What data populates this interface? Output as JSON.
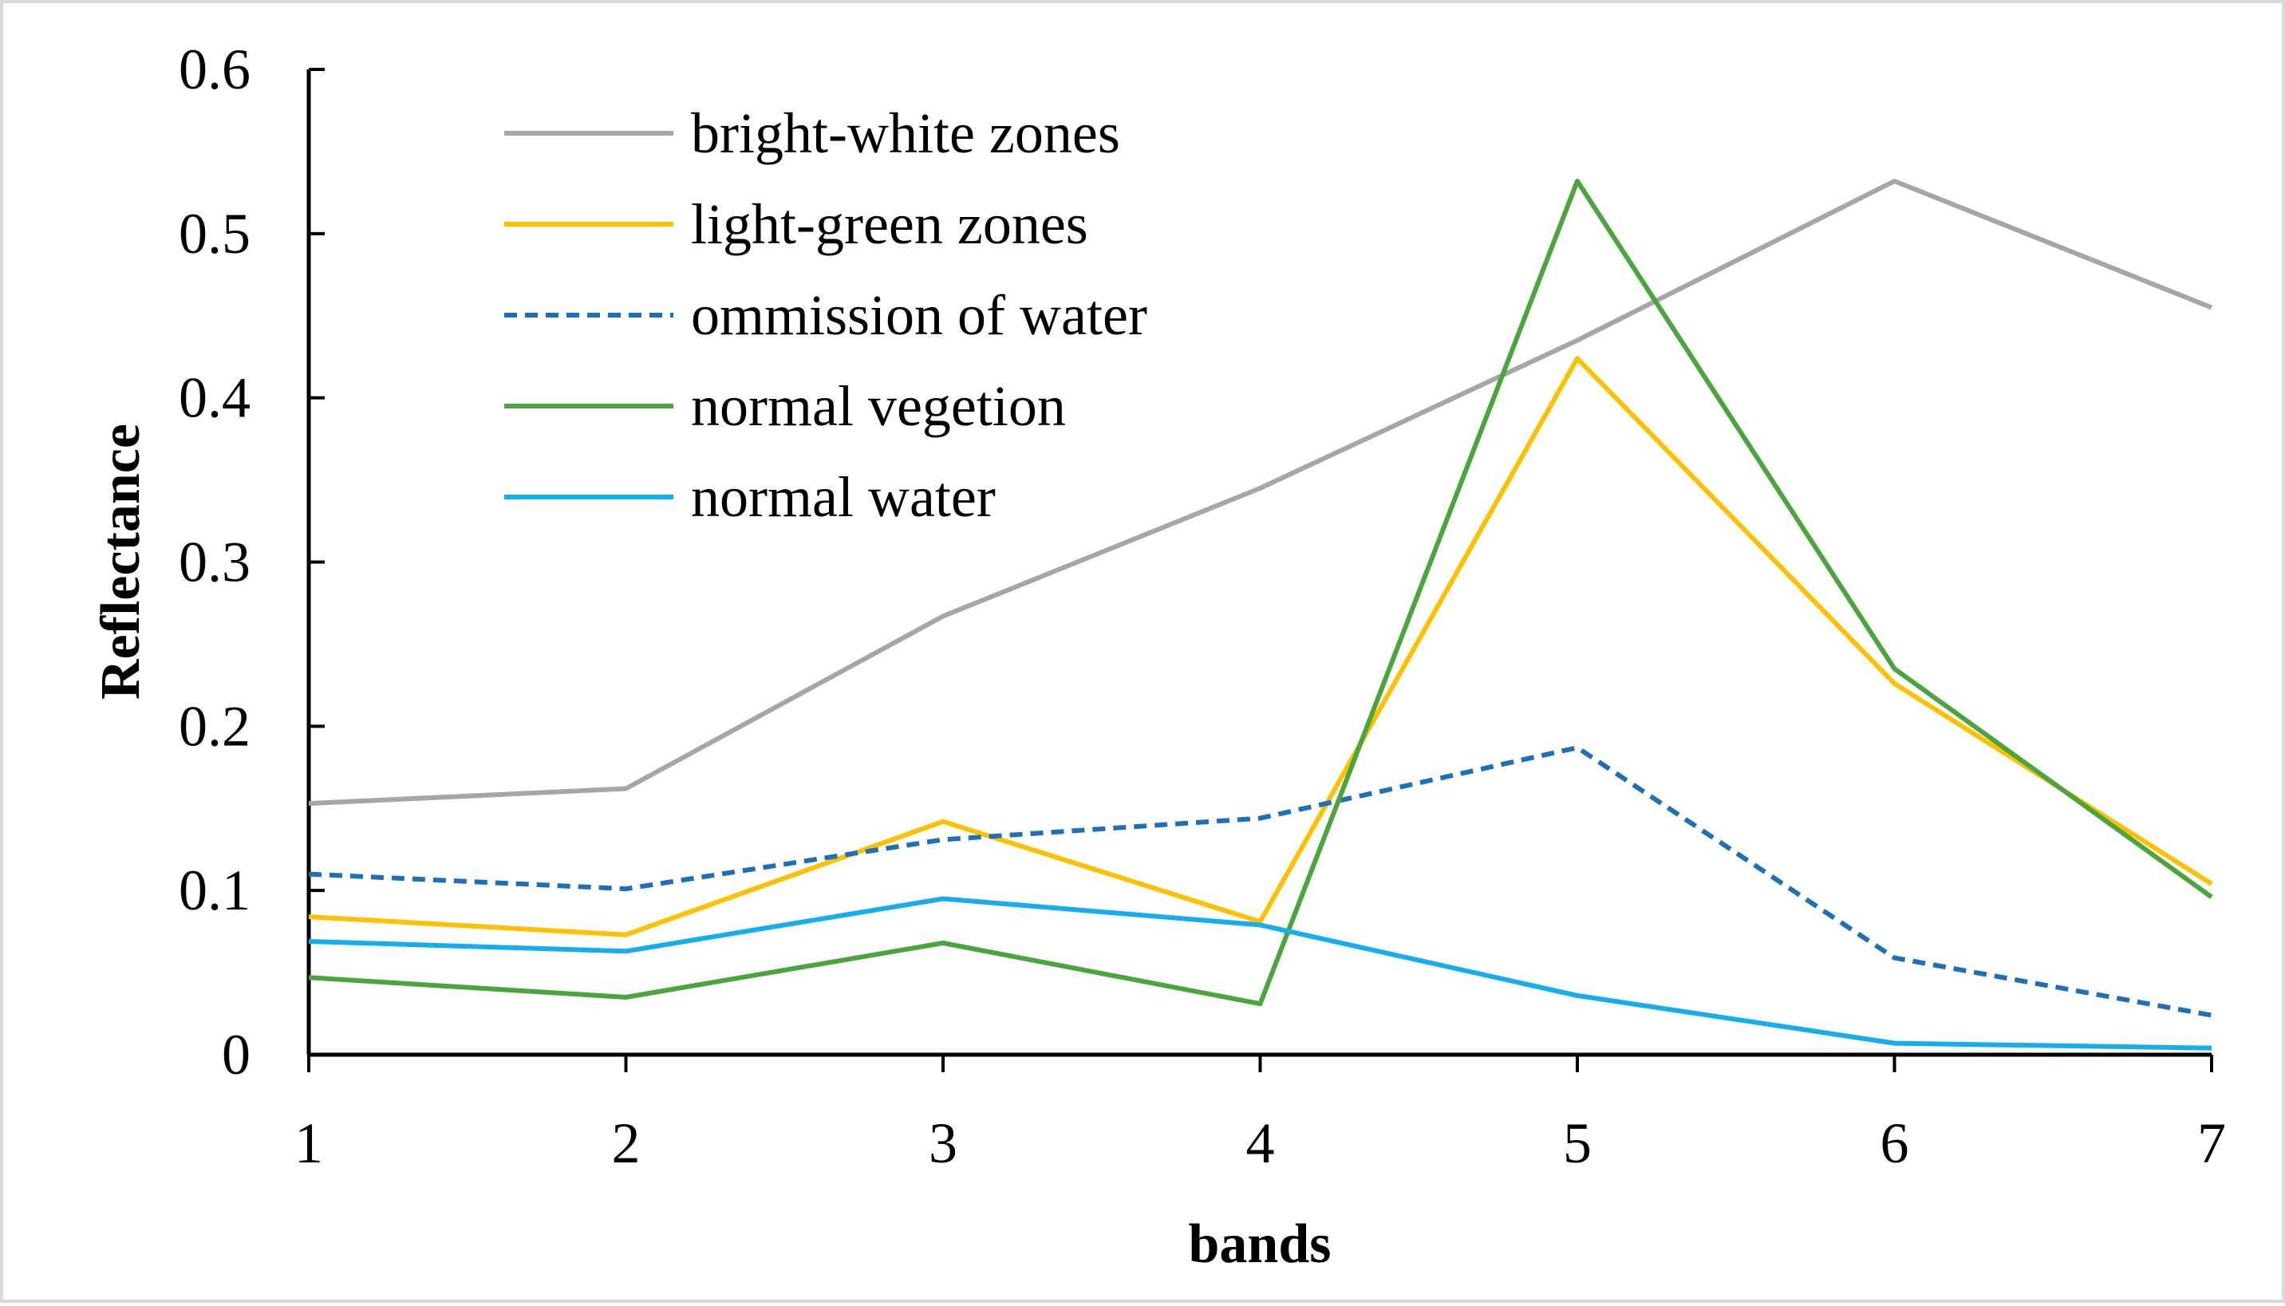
{
  "chart_data": {
    "type": "line",
    "title": "",
    "xlabel": "bands",
    "ylabel": "Reflectance",
    "x": [
      "1",
      "2",
      "3",
      "4",
      "5",
      "6",
      "7"
    ],
    "ylim": [
      0,
      0.6
    ],
    "yticks": [
      "0",
      "0.1",
      "0.2",
      "0.3",
      "0.4",
      "0.5",
      "0.6"
    ],
    "grid": false,
    "legend_position": "top-left",
    "series": [
      {
        "name": "bright-white zones",
        "color": "#a6a6a6",
        "dashed": false,
        "values": [
          0.153,
          0.162,
          0.267,
          0.345,
          0.435,
          0.532,
          0.455
        ]
      },
      {
        "name": "light-green zones",
        "color": "#ffc000",
        "dashed": false,
        "values": [
          0.084,
          0.073,
          0.142,
          0.081,
          0.424,
          0.226,
          0.104
        ]
      },
      {
        "name": "ommission of water",
        "color": "#1f6fb8",
        "dashed": true,
        "values": [
          0.11,
          0.101,
          0.131,
          0.144,
          0.187,
          0.059,
          0.024
        ]
      },
      {
        "name": "normal vegetion",
        "color": "#4aa63c",
        "dashed": false,
        "values": [
          0.047,
          0.035,
          0.068,
          0.031,
          0.532,
          0.235,
          0.096
        ]
      },
      {
        "name": "normal water",
        "color": "#14aeef",
        "dashed": false,
        "values": [
          0.069,
          0.063,
          0.095,
          0.079,
          0.036,
          0.007,
          0.004
        ]
      }
    ]
  }
}
